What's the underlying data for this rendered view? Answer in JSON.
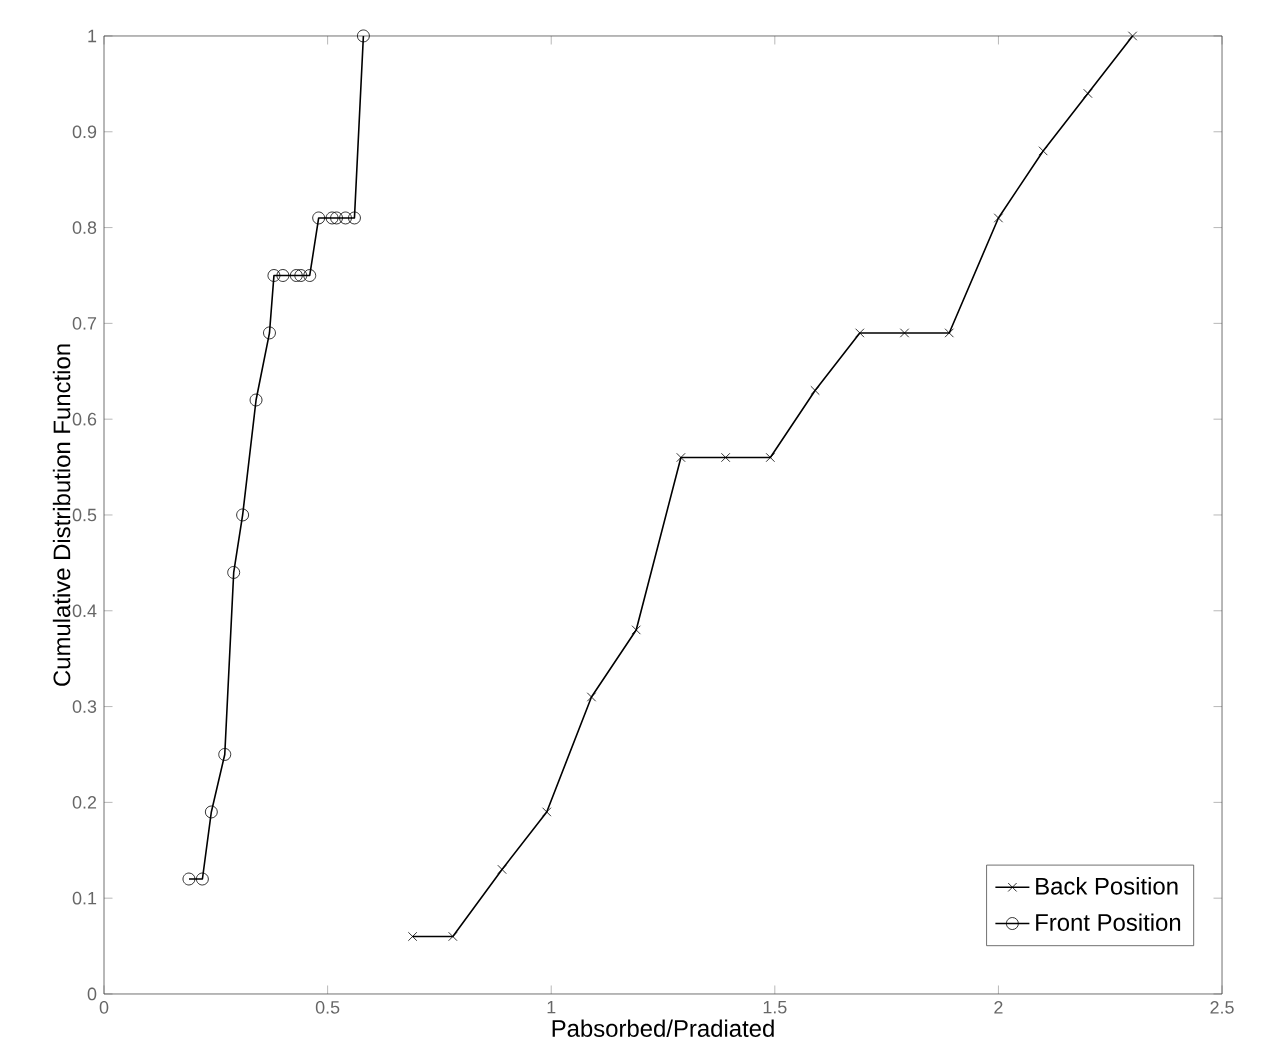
{
  "chart_data": {
    "type": "line",
    "xlabel": "Pabsorbed/Pradiated",
    "ylabel": "Cumulative Distribution Function",
    "xlim": [
      0,
      2.5
    ],
    "ylim": [
      0,
      1
    ],
    "xticks": [
      0,
      0.5,
      1,
      1.5,
      2,
      2.5
    ],
    "yticks": [
      0,
      0.1,
      0.2,
      0.3,
      0.4,
      0.5,
      0.6,
      0.7,
      0.8,
      0.9,
      1
    ],
    "grid": false,
    "legend": "bottom right",
    "line_style": "solid",
    "series": [
      {
        "name": "Back Position",
        "color": "#000000",
        "marker": "cross",
        "x": [
          0.69,
          0.78,
          0.89,
          0.99,
          1.09,
          1.19,
          1.29,
          1.39,
          1.49,
          1.59,
          1.69,
          1.79,
          1.89,
          2.0,
          2.1,
          2.2,
          2.3
        ],
        "values": [
          0.06,
          0.06,
          0.13,
          0.19,
          0.31,
          0.38,
          0.56,
          0.56,
          0.56,
          0.63,
          0.69,
          0.69,
          0.69,
          0.81,
          0.88,
          0.94,
          1
        ]
      },
      {
        "name": "Front Position",
        "color": "#000000",
        "marker": "circle",
        "x": [
          0.19,
          0.22,
          0.24,
          0.27,
          0.29,
          0.31,
          0.34,
          0.37,
          0.38,
          0.4,
          0.43,
          0.44,
          0.46,
          0.48,
          0.51,
          0.52,
          0.54,
          0.56,
          0.58
        ],
        "values": [
          0.12,
          0.12,
          0.19,
          0.25,
          0.44,
          0.5,
          0.62,
          0.69,
          0.75,
          0.75,
          0.75,
          0.75,
          0.75,
          0.81,
          0.81,
          0.81,
          0.81,
          0.81,
          1
        ]
      }
    ]
  }
}
